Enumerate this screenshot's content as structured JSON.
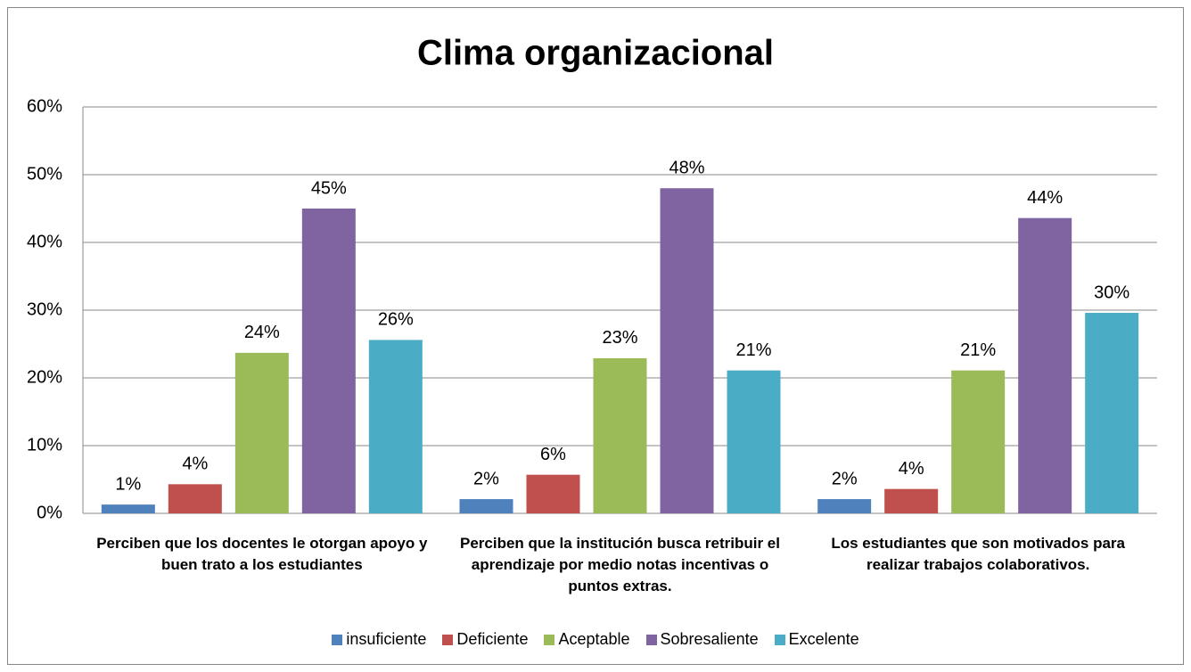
{
  "chart_data": {
    "type": "bar",
    "title": "Clima organizacional",
    "categories": [
      "Perciben que los docentes le otorgan apoyo y buen trato a los estudiantes",
      "Perciben que la institución busca retribuir el aprendizaje por medio notas incentivas o puntos extras.",
      "Los estudiantes que son motivados para realizar  trabajos colaborativos."
    ],
    "series": [
      {
        "name": "insuficiente",
        "color": "#4f81bd",
        "values": [
          1.3,
          2.1,
          2.1
        ],
        "value_labels": [
          "1%",
          "2%",
          "2%"
        ]
      },
      {
        "name": "Deficiente",
        "color": "#c0504d",
        "values": [
          4.3,
          5.7,
          3.6
        ],
        "value_labels": [
          "4%",
          "6%",
          "4%"
        ]
      },
      {
        "name": "Aceptable",
        "color": "#9bbb59",
        "values": [
          23.7,
          22.9,
          21.1
        ],
        "value_labels": [
          "24%",
          "23%",
          "21%"
        ]
      },
      {
        "name": "Sobresaliente",
        "color": "#8064a2",
        "values": [
          45.0,
          48.0,
          43.6
        ],
        "value_labels": [
          "45%",
          "48%",
          "44%"
        ]
      },
      {
        "name": "Excelente",
        "color": "#4bacc6",
        "values": [
          25.6,
          21.1,
          29.6
        ],
        "value_labels": [
          "26%",
          "21%",
          "30%"
        ]
      }
    ],
    "ylim": [
      0,
      60
    ],
    "yticks": [
      {
        "value": 0,
        "label": "0%"
      },
      {
        "value": 10,
        "label": "10%"
      },
      {
        "value": 20,
        "label": "20%"
      },
      {
        "value": 30,
        "label": "30%"
      },
      {
        "value": 40,
        "label": "40%"
      },
      {
        "value": 50,
        "label": "50%"
      },
      {
        "value": 60,
        "label": "60%"
      }
    ],
    "grid": true,
    "legend": "bottom"
  }
}
